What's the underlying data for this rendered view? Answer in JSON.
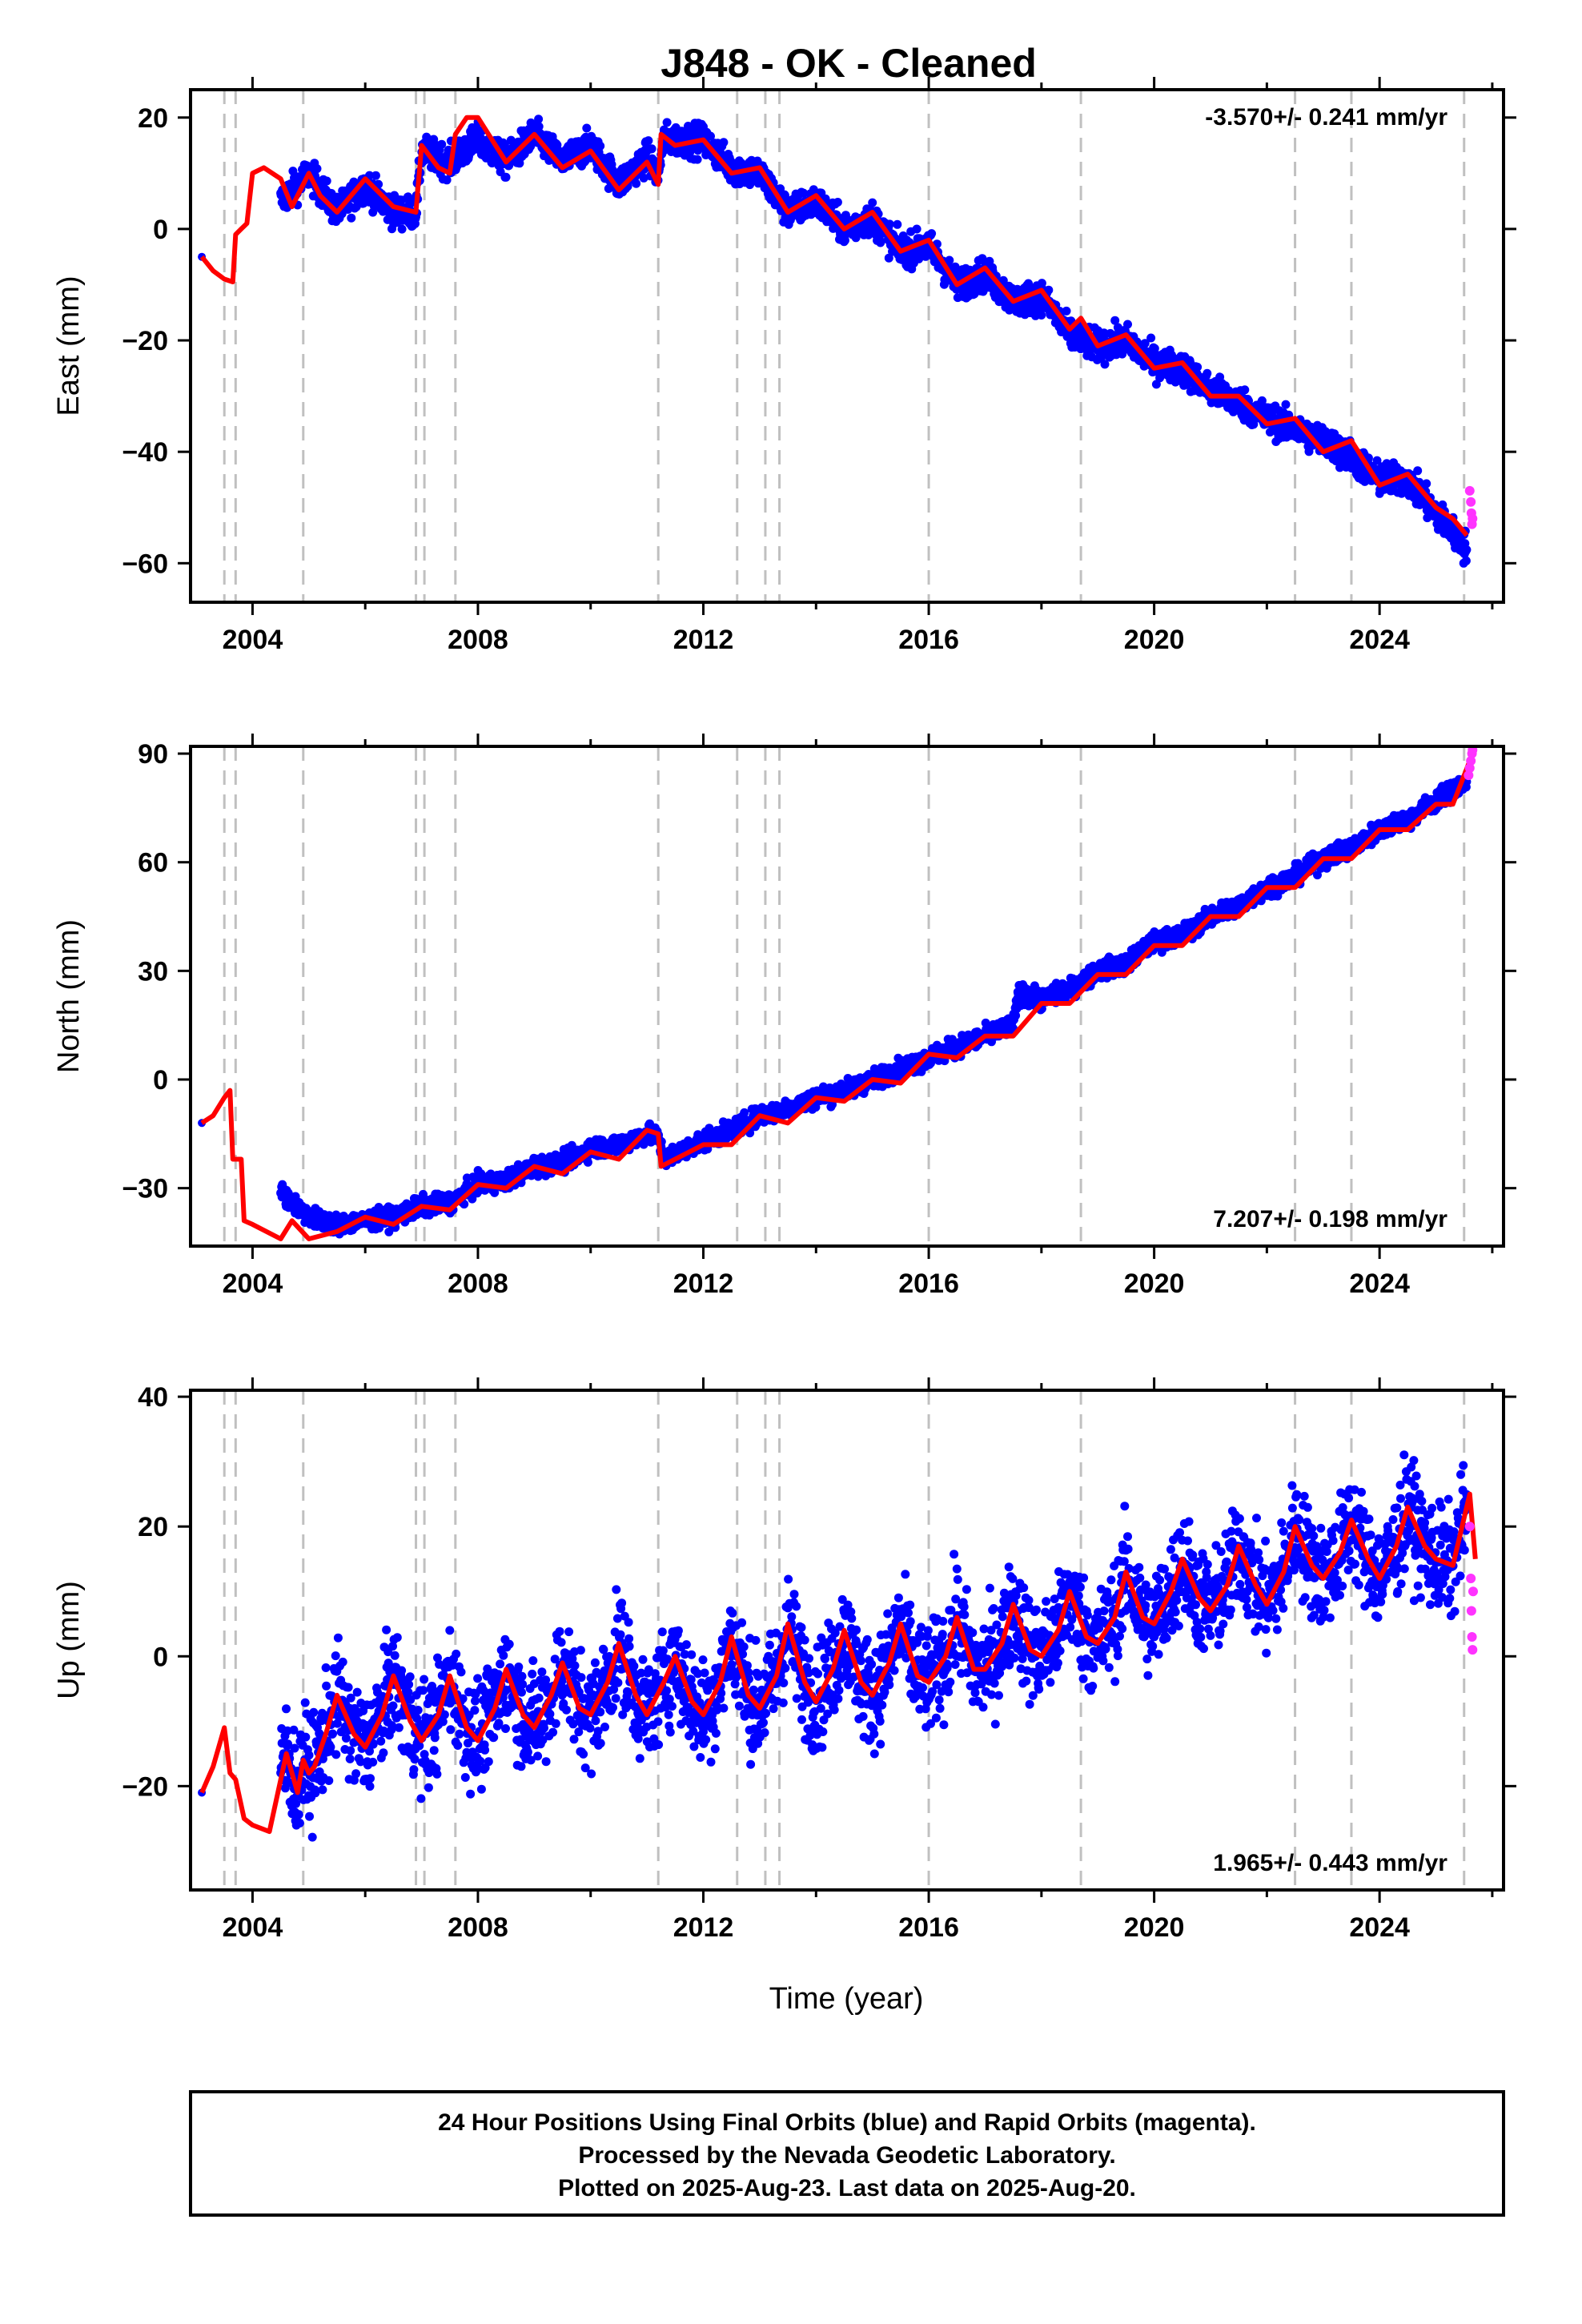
{
  "figure": {
    "title": "J848  - OK - Cleaned",
    "xlabel": "Time (year)",
    "footer": [
      "24 Hour Positions Using Final Orbits (blue) and Rapid Orbits (magenta).",
      "Processed by the Nevada Geodetic Laboratory.",
      "Plotted on 2025-Aug-23. Last data on 2025-Aug-20."
    ]
  },
  "colors": {
    "final": "#0000ff",
    "rapid": "#ff33ff",
    "model": "#ff0000",
    "steps": "#c0c0c0"
  },
  "chart_data": [
    {
      "type": "scatter",
      "name": "east",
      "ylabel": "East (mm)",
      "rate_label": "-3.570+/- 0.241 mm/yr",
      "rate_position": "top-right",
      "xlim": [
        2002.9,
        2026.2
      ],
      "ylim": [
        -67,
        25
      ],
      "xticks": [
        2004,
        2008,
        2012,
        2016,
        2020,
        2024
      ],
      "yticks": [
        20,
        0,
        -20,
        -40,
        -60
      ],
      "step_dates": [
        2003.5,
        2003.7,
        2004.9,
        2006.9,
        2007.05,
        2007.6,
        2011.2,
        2012.6,
        2013.1,
        2013.35,
        2016.0,
        2018.7,
        2022.5,
        2023.5,
        2025.5
      ],
      "model_curve": {
        "x": [
          2003.1,
          2003.3,
          2003.5,
          2003.65,
          2003.7,
          2003.8,
          2003.9,
          2004.0,
          2004.2,
          2004.5,
          2004.7,
          2005.0,
          2005.2,
          2005.5,
          2006.0,
          2006.5,
          2006.9,
          2007.0,
          2007.3,
          2007.5,
          2007.6,
          2007.8,
          2008.0,
          2008.5,
          2009.0,
          2009.5,
          2010.0,
          2010.5,
          2011.0,
          2011.2,
          2011.25,
          2011.5,
          2012.0,
          2012.5,
          2013.0,
          2013.5,
          2014.0,
          2014.5,
          2015.0,
          2015.5,
          2016.0,
          2016.5,
          2017.0,
          2017.5,
          2018.0,
          2018.5,
          2018.7,
          2019.0,
          2019.5,
          2020.0,
          2020.5,
          2021.0,
          2021.5,
          2022.0,
          2022.5,
          2023.0,
          2023.5,
          2024.0,
          2024.5,
          2025.0,
          2025.3,
          2025.55
        ],
        "y": [
          -5,
          -7.5,
          -9,
          -9.5,
          -1,
          0,
          1,
          10,
          11,
          9,
          4,
          10,
          6,
          3,
          9,
          4,
          3,
          15,
          11,
          10,
          17,
          20,
          20,
          12,
          17,
          11,
          14,
          7,
          12,
          8,
          17,
          15,
          16,
          10,
          11,
          3,
          6,
          0,
          3,
          -4,
          -2,
          -10,
          -7,
          -13,
          -11,
          -18,
          -16,
          -21,
          -19,
          -25,
          -24,
          -30,
          -30,
          -35,
          -34,
          -40,
          -38,
          -46,
          -44,
          -50,
          -52,
          -55
        ]
      },
      "final_band": [
        [
          2003.1,
          -4.5
        ],
        [
          2004.5,
          5
        ],
        [
          2005.0,
          10
        ],
        [
          2005.5,
          3
        ],
        [
          2006.0,
          8
        ],
        [
          2006.5,
          3
        ],
        [
          2006.9,
          3
        ],
        [
          2007.0,
          14
        ],
        [
          2007.5,
          12
        ],
        [
          2008.0,
          16
        ],
        [
          2008.5,
          12
        ],
        [
          2009.0,
          17
        ],
        [
          2009.5,
          12
        ],
        [
          2010.0,
          15
        ],
        [
          2010.5,
          8
        ],
        [
          2011.0,
          13
        ],
        [
          2011.2,
          10
        ],
        [
          2011.3,
          16
        ],
        [
          2012.0,
          16
        ],
        [
          2012.5,
          11
        ],
        [
          2013.0,
          10
        ],
        [
          2013.5,
          3
        ],
        [
          2014.0,
          5
        ],
        [
          2014.5,
          0
        ],
        [
          2015.0,
          2
        ],
        [
          2015.5,
          -4
        ],
        [
          2016.0,
          -3
        ],
        [
          2016.5,
          -10
        ],
        [
          2017.0,
          -8
        ],
        [
          2017.5,
          -13
        ],
        [
          2018.0,
          -12
        ],
        [
          2018.5,
          -19
        ],
        [
          2019.0,
          -21
        ],
        [
          2019.5,
          -20
        ],
        [
          2020.0,
          -24
        ],
        [
          2020.5,
          -25
        ],
        [
          2021.0,
          -29
        ],
        [
          2021.5,
          -31
        ],
        [
          2022.0,
          -34
        ],
        [
          2022.5,
          -36
        ],
        [
          2023.0,
          -38
        ],
        [
          2023.5,
          -41
        ],
        [
          2024.0,
          -45
        ],
        [
          2024.5,
          -45
        ],
        [
          2025.0,
          -51
        ],
        [
          2025.5,
          -57
        ]
      ],
      "rapid_points": [
        [
          2025.6,
          -47
        ],
        [
          2025.62,
          -49
        ],
        [
          2025.63,
          -51
        ],
        [
          2025.64,
          -53
        ],
        [
          2025.65,
          -52
        ]
      ]
    },
    {
      "type": "scatter",
      "name": "north",
      "ylabel": "North (mm)",
      "rate_label": "7.207+/- 0.198 mm/yr",
      "rate_position": "bottom-right",
      "xlim": [
        2002.9,
        2026.2
      ],
      "ylim": [
        -46,
        92
      ],
      "xticks": [
        2004,
        2008,
        2012,
        2016,
        2020,
        2024
      ],
      "yticks": [
        90,
        60,
        30,
        0,
        -30
      ],
      "step_dates": [
        2003.5,
        2003.7,
        2004.9,
        2006.9,
        2007.05,
        2007.6,
        2011.2,
        2012.6,
        2013.1,
        2013.35,
        2016.0,
        2018.7,
        2022.5,
        2023.5,
        2025.5
      ],
      "model_curve": {
        "x": [
          2003.1,
          2003.3,
          2003.5,
          2003.6,
          2003.65,
          2003.8,
          2003.85,
          2004.0,
          2004.5,
          2004.7,
          2005.0,
          2005.5,
          2006.0,
          2006.5,
          2007.0,
          2007.5,
          2008.0,
          2008.5,
          2009.0,
          2009.5,
          2010.0,
          2010.5,
          2011.0,
          2011.2,
          2011.25,
          2012.0,
          2012.5,
          2013.0,
          2013.5,
          2014.0,
          2014.5,
          2015.0,
          2015.5,
          2016.0,
          2016.5,
          2017.0,
          2017.5,
          2018.0,
          2018.5,
          2019.0,
          2019.5,
          2020.0,
          2020.5,
          2021.0,
          2021.5,
          2022.0,
          2022.5,
          2023.0,
          2023.5,
          2024.0,
          2024.5,
          2025.0,
          2025.3,
          2025.6
        ],
        "y": [
          -12,
          -10,
          -5,
          -3,
          -22,
          -22,
          -39,
          -40,
          -44,
          -39,
          -44,
          -42,
          -38,
          -40,
          -35,
          -36,
          -29,
          -30,
          -24,
          -26,
          -20,
          -22,
          -14,
          -15,
          -24,
          -18,
          -18,
          -10,
          -12,
          -5,
          -6,
          0,
          -1,
          7,
          6,
          12,
          12,
          21,
          21,
          29,
          29,
          37,
          37,
          45,
          45,
          53,
          53,
          61,
          61,
          69,
          69,
          76,
          76,
          88
        ]
      },
      "final_band": [
        [
          2003.1,
          -12
        ],
        [
          2004.5,
          -31
        ],
        [
          2005.0,
          -38
        ],
        [
          2005.5,
          -40
        ],
        [
          2006.0,
          -39
        ],
        [
          2006.5,
          -38
        ],
        [
          2007.0,
          -35
        ],
        [
          2007.5,
          -34
        ],
        [
          2008.0,
          -29
        ],
        [
          2008.5,
          -28
        ],
        [
          2009.0,
          -24
        ],
        [
          2009.5,
          -23
        ],
        [
          2010.0,
          -19
        ],
        [
          2010.5,
          -18
        ],
        [
          2011.0,
          -15
        ],
        [
          2011.2,
          -16
        ],
        [
          2011.3,
          -22
        ],
        [
          2012.0,
          -17
        ],
        [
          2012.5,
          -14
        ],
        [
          2013.0,
          -10
        ],
        [
          2013.5,
          -8
        ],
        [
          2014.0,
          -5
        ],
        [
          2014.5,
          -3
        ],
        [
          2015.0,
          0
        ],
        [
          2015.5,
          3
        ],
        [
          2016.0,
          6
        ],
        [
          2016.5,
          9
        ],
        [
          2017.0,
          12
        ],
        [
          2017.5,
          15
        ],
        [
          2017.6,
          24
        ],
        [
          2018.0,
          22
        ],
        [
          2018.5,
          25
        ],
        [
          2019.0,
          30
        ],
        [
          2019.5,
          32
        ],
        [
          2020.0,
          38
        ],
        [
          2020.5,
          40
        ],
        [
          2021.0,
          45
        ],
        [
          2021.5,
          48
        ],
        [
          2022.0,
          53
        ],
        [
          2022.5,
          56
        ],
        [
          2023.0,
          61
        ],
        [
          2023.5,
          64
        ],
        [
          2024.0,
          69
        ],
        [
          2024.5,
          72
        ],
        [
          2025.0,
          77
        ],
        [
          2025.5,
          82
        ]
      ],
      "rapid_points": [
        [
          2025.58,
          84
        ],
        [
          2025.6,
          86
        ],
        [
          2025.62,
          88
        ],
        [
          2025.64,
          90
        ],
        [
          2025.65,
          91
        ]
      ]
    },
    {
      "type": "scatter",
      "name": "up",
      "ylabel": "Up (mm)",
      "rate_label": "1.965+/- 0.443 mm/yr",
      "rate_position": "bottom-right",
      "xlim": [
        2002.9,
        2026.2
      ],
      "ylim": [
        -36,
        41
      ],
      "xticks": [
        2004,
        2008,
        2012,
        2016,
        2020,
        2024
      ],
      "yticks": [
        40,
        20,
        0,
        -20
      ],
      "step_dates": [
        2003.5,
        2003.7,
        2004.9,
        2006.9,
        2007.05,
        2007.6,
        2011.2,
        2012.6,
        2013.1,
        2013.35,
        2016.0,
        2018.7,
        2022.5,
        2023.5,
        2025.5
      ],
      "model_curve": {
        "x": [
          2003.1,
          2003.3,
          2003.5,
          2003.6,
          2003.7,
          2003.85,
          2004.0,
          2004.3,
          2004.6,
          2004.8,
          2004.9,
          2005.0,
          2005.1,
          2005.3,
          2005.5,
          2005.8,
          2006.0,
          2006.3,
          2006.5,
          2006.8,
          2007.0,
          2007.3,
          2007.5,
          2007.8,
          2008.0,
          2008.3,
          2008.5,
          2008.8,
          2009.0,
          2009.3,
          2009.5,
          2009.8,
          2010.0,
          2010.3,
          2010.5,
          2010.8,
          2011.0,
          2011.3,
          2011.5,
          2011.8,
          2012.0,
          2012.3,
          2012.5,
          2012.8,
          2013.0,
          2013.3,
          2013.5,
          2013.8,
          2014.0,
          2014.3,
          2014.5,
          2014.8,
          2015.0,
          2015.3,
          2015.5,
          2015.8,
          2016.0,
          2016.3,
          2016.5,
          2016.8,
          2017.0,
          2017.3,
          2017.5,
          2017.8,
          2018.0,
          2018.3,
          2018.5,
          2018.8,
          2019.0,
          2019.3,
          2019.5,
          2019.8,
          2020.0,
          2020.3,
          2020.5,
          2020.8,
          2021.0,
          2021.3,
          2021.5,
          2021.8,
          2022.0,
          2022.3,
          2022.5,
          2022.8,
          2023.0,
          2023.3,
          2023.5,
          2023.8,
          2024.0,
          2024.3,
          2024.5,
          2024.8,
          2025.0,
          2025.3,
          2025.6,
          2025.7
        ],
        "y": [
          -21,
          -17,
          -11,
          -18,
          -19,
          -25,
          -26,
          -27,
          -15,
          -21,
          -16,
          -18,
          -17,
          -12,
          -6,
          -12,
          -14,
          -9,
          -3,
          -10,
          -13,
          -9,
          -3,
          -11,
          -13,
          -8,
          -2,
          -9,
          -11,
          -6,
          -1,
          -8,
          -9,
          -4,
          2,
          -6,
          -9,
          -4,
          0,
          -7,
          -9,
          -4,
          3,
          -6,
          -8,
          -3,
          5,
          -4,
          -7,
          -2,
          4,
          -4,
          -6,
          -1,
          5,
          -3,
          -4,
          0,
          6,
          -2,
          -2,
          2,
          8,
          1,
          0,
          4,
          10,
          3,
          2,
          6,
          13,
          6,
          5,
          10,
          15,
          9,
          7,
          11,
          17,
          11,
          8,
          13,
          20,
          14,
          12,
          16,
          21,
          15,
          12,
          17,
          23,
          17,
          15,
          14,
          25,
          15
        ]
      },
      "rapid_points": [
        [
          2025.6,
          20
        ],
        [
          2025.62,
          12
        ],
        [
          2025.63,
          7
        ],
        [
          2025.64,
          3
        ],
        [
          2025.65,
          1
        ],
        [
          2025.66,
          10
        ]
      ]
    }
  ]
}
